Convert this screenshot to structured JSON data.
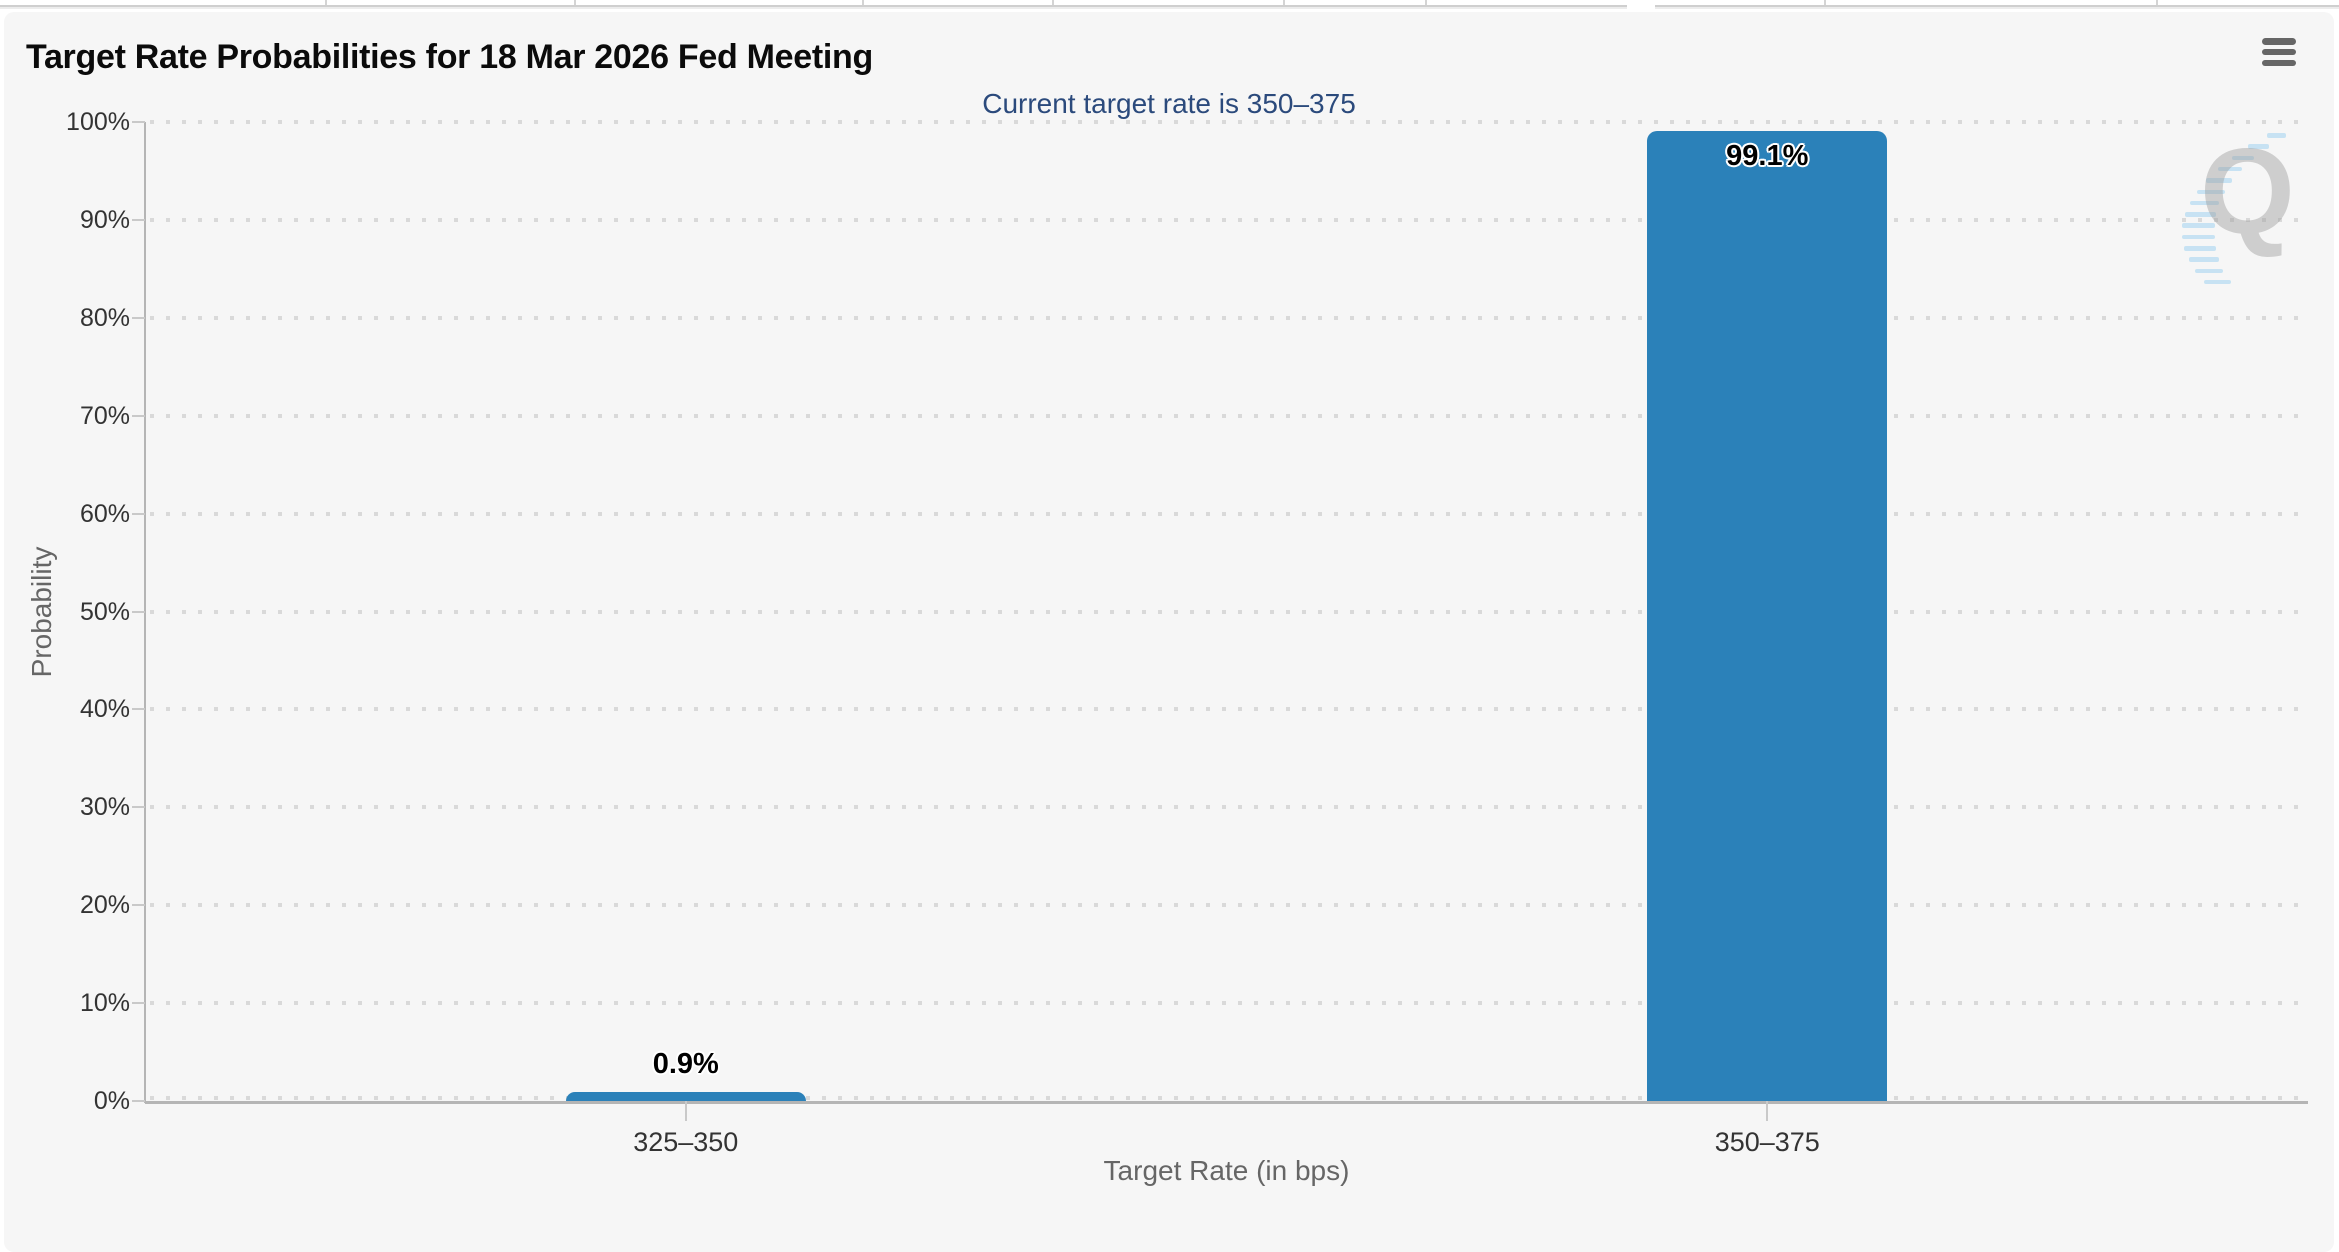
{
  "header": {
    "title": "Target Rate Probabilities for 18 Mar 2026 Fed Meeting",
    "subtitle": "Current target rate is 350–375"
  },
  "icons": {
    "context_menu": "hamburger-menu",
    "watermark_letter": "Q"
  },
  "colors": {
    "bar": "#2b81b9",
    "subtitle": "#2b4a7c",
    "card_bg": "#f6f6f6",
    "axis_line": "#b5b5b5",
    "tick": "#c9c9c9",
    "grid_dot": "#d9d9d9",
    "label": "#333333",
    "axis_title": "#666666",
    "data_label": "#000000",
    "menu_icon": "#666666",
    "wm_gray": "#9e9e9e",
    "wm_blue": "#a9d5f2"
  },
  "chart_data": {
    "type": "bar",
    "title": "Target Rate Probabilities for 18 Mar 2026 Fed Meeting",
    "subtitle": "Current target rate is 350–375",
    "categories": [
      "325–350",
      "350–375"
    ],
    "values": [
      0.9,
      99.1
    ],
    "value_labels": [
      "0.9%",
      "99.1%"
    ],
    "xlabel": "Target Rate (in bps)",
    "ylabel": "Probability",
    "ylim": [
      0,
      100
    ],
    "ytick_step": 10,
    "ytick_labels": [
      "0%",
      "10%",
      "20%",
      "30%",
      "40%",
      "50%",
      "60%",
      "70%",
      "80%",
      "90%",
      "100%"
    ],
    "grid": "dotted-horizontal",
    "legend": "none"
  }
}
